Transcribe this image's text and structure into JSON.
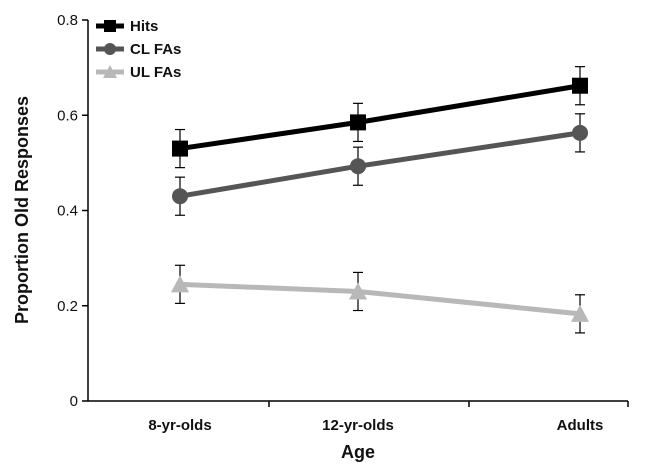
{
  "chart_data": {
    "type": "line",
    "xlabel": "Age",
    "ylabel": "Proportion Old Responses",
    "categories": [
      "8-yr-olds",
      "12-yr-olds",
      "Adults"
    ],
    "ylim": [
      0,
      0.8
    ],
    "yticks": [
      "0",
      "0.2",
      "0.4",
      "0.6",
      "0.8"
    ],
    "grid": false,
    "legend": "top-left",
    "series": [
      {
        "name": "Hits",
        "values": [
          0.53,
          0.585,
          0.662
        ],
        "errors": [
          0.04,
          0.04,
          0.04
        ],
        "marker": "square",
        "color": "#000000"
      },
      {
        "name": "CL FAs",
        "values": [
          0.43,
          0.493,
          0.563
        ],
        "errors": [
          0.04,
          0.04,
          0.04
        ],
        "marker": "circle",
        "color": "#555555"
      },
      {
        "name": "UL FAs",
        "values": [
          0.245,
          0.23,
          0.183
        ],
        "errors": [
          0.04,
          0.04,
          0.04
        ],
        "marker": "triangle",
        "color": "#b8b8b8"
      }
    ]
  }
}
